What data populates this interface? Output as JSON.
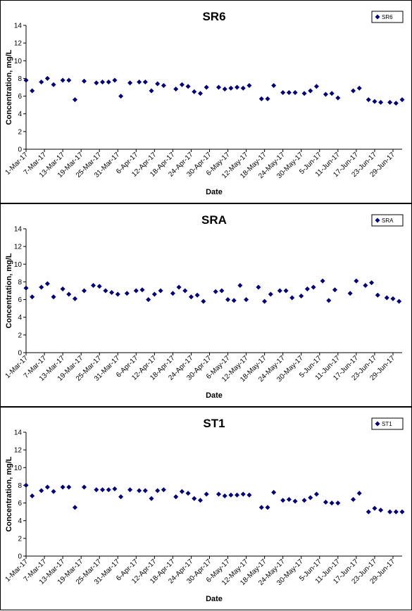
{
  "chart_data": [
    {
      "type": "scatter",
      "title": "SR6",
      "xlabel": "Date",
      "ylabel": "Concentration, mg/L",
      "ylim": [
        0,
        14
      ],
      "yticks": [
        "0",
        "2",
        "4",
        "6",
        "8",
        "10",
        "12",
        "14"
      ],
      "xlim": [
        "1-Mar-17",
        "2-Jul-17"
      ],
      "xtick_labels": [
        "1-Mar-17",
        "7-Mar-17",
        "13-Mar-17",
        "19-Mar-17",
        "25-Mar-17",
        "31-Mar-17",
        "6-Apr-17",
        "12-Apr-17",
        "18-Apr-17",
        "24-Apr-17",
        "30-Apr-17",
        "6-May-17",
        "12-May-17",
        "18-May-17",
        "24-May-17",
        "30-May-17",
        "5-Jun-17",
        "11-Jun-17",
        "17-Jun-17",
        "23-Jun-17",
        "29-Jun-17"
      ],
      "grid": false,
      "legend_position": "top-right",
      "marker": "diamond",
      "color": "#000080",
      "series": [
        {
          "name": "SR6",
          "points": [
            [
              "1-Mar-17",
              7.8
            ],
            [
              "3-Mar-17",
              6.6
            ],
            [
              "6-Mar-17",
              7.6
            ],
            [
              "8-Mar-17",
              8.0
            ],
            [
              "10-Mar-17",
              7.3
            ],
            [
              "13-Mar-17",
              7.8
            ],
            [
              "15-Mar-17",
              7.8
            ],
            [
              "17-Mar-17",
              5.6
            ],
            [
              "20-Mar-17",
              7.7
            ],
            [
              "24-Mar-17",
              7.5
            ],
            [
              "26-Mar-17",
              7.6
            ],
            [
              "28-Mar-17",
              7.6
            ],
            [
              "30-Mar-17",
              7.8
            ],
            [
              "1-Apr-17",
              6.0
            ],
            [
              "4-Apr-17",
              7.5
            ],
            [
              "7-Apr-17",
              7.6
            ],
            [
              "9-Apr-17",
              7.6
            ],
            [
              "11-Apr-17",
              6.6
            ],
            [
              "13-Apr-17",
              7.4
            ],
            [
              "15-Apr-17",
              7.2
            ],
            [
              "19-Apr-17",
              6.8
            ],
            [
              "21-Apr-17",
              7.3
            ],
            [
              "23-Apr-17",
              7.1
            ],
            [
              "25-Apr-17",
              6.5
            ],
            [
              "27-Apr-17",
              6.3
            ],
            [
              "29-Apr-17",
              7.0
            ],
            [
              "3-May-17",
              7.0
            ],
            [
              "5-May-17",
              6.8
            ],
            [
              "7-May-17",
              6.9
            ],
            [
              "9-May-17",
              7.0
            ],
            [
              "11-May-17",
              6.9
            ],
            [
              "13-May-17",
              7.2
            ],
            [
              "17-May-17",
              5.7
            ],
            [
              "19-May-17",
              5.7
            ],
            [
              "21-May-17",
              7.2
            ],
            [
              "24-May-17",
              6.4
            ],
            [
              "26-May-17",
              6.4
            ],
            [
              "28-May-17",
              6.4
            ],
            [
              "31-May-17",
              6.3
            ],
            [
              "2-Jun-17",
              6.6
            ],
            [
              "4-Jun-17",
              7.1
            ],
            [
              "7-Jun-17",
              6.2
            ],
            [
              "9-Jun-17",
              6.3
            ],
            [
              "11-Jun-17",
              5.8
            ],
            [
              "16-Jun-17",
              6.6
            ],
            [
              "18-Jun-17",
              6.9
            ],
            [
              "21-Jun-17",
              5.6
            ],
            [
              "23-Jun-17",
              5.4
            ],
            [
              "25-Jun-17",
              5.3
            ],
            [
              "28-Jun-17",
              5.3
            ],
            [
              "30-Jun-17",
              5.2
            ],
            [
              "2-Jul-17",
              5.6
            ]
          ]
        }
      ]
    },
    {
      "type": "scatter",
      "title": "SRA",
      "xlabel": "Date",
      "ylabel": "Concentration, mg/L",
      "ylim": [
        0,
        14
      ],
      "yticks": [
        "0",
        "2",
        "4",
        "6",
        "8",
        "10",
        "12",
        "14"
      ],
      "xlim": [
        "1-Mar-17",
        "2-Jul-17"
      ],
      "xtick_labels": [
        "1-Mar-17",
        "7-Mar-17",
        "13-Mar-17",
        "19-Mar-17",
        "25-Mar-17",
        "31-Mar-17",
        "6-Apr-17",
        "12-Apr-17",
        "18-Apr-17",
        "24-Apr-17",
        "30-Apr-17",
        "6-May-17",
        "12-May-17",
        "18-May-17",
        "24-May-17",
        "30-May-17",
        "5-Jun-17",
        "11-Jun-17",
        "17-Jun-17",
        "23-Jun-17",
        "29-Jun-17"
      ],
      "grid": false,
      "legend_position": "top-right",
      "marker": "diamond",
      "color": "#000080",
      "series": [
        {
          "name": "SRA",
          "points": [
            [
              "1-Mar-17",
              7.3
            ],
            [
              "3-Mar-17",
              6.3
            ],
            [
              "6-Mar-17",
              7.4
            ],
            [
              "8-Mar-17",
              7.8
            ],
            [
              "10-Mar-17",
              6.3
            ],
            [
              "13-Mar-17",
              7.2
            ],
            [
              "15-Mar-17",
              6.6
            ],
            [
              "17-Mar-17",
              6.1
            ],
            [
              "20-Mar-17",
              7.0
            ],
            [
              "23-Mar-17",
              7.6
            ],
            [
              "25-Mar-17",
              7.5
            ],
            [
              "27-Mar-17",
              7.0
            ],
            [
              "29-Mar-17",
              6.8
            ],
            [
              "31-Mar-17",
              6.6
            ],
            [
              "3-Apr-17",
              6.7
            ],
            [
              "6-Apr-17",
              7.0
            ],
            [
              "8-Apr-17",
              7.1
            ],
            [
              "10-Apr-17",
              6.0
            ],
            [
              "12-Apr-17",
              6.6
            ],
            [
              "14-Apr-17",
              7.0
            ],
            [
              "18-Apr-17",
              6.7
            ],
            [
              "20-Apr-17",
              7.4
            ],
            [
              "22-Apr-17",
              7.0
            ],
            [
              "24-Apr-17",
              6.3
            ],
            [
              "26-Apr-17",
              6.5
            ],
            [
              "28-Apr-17",
              5.8
            ],
            [
              "2-May-17",
              6.9
            ],
            [
              "4-May-17",
              7.0
            ],
            [
              "6-May-17",
              6.0
            ],
            [
              "8-May-17",
              5.9
            ],
            [
              "10-May-17",
              7.6
            ],
            [
              "12-May-17",
              6.0
            ],
            [
              "16-May-17",
              7.4
            ],
            [
              "18-May-17",
              5.8
            ],
            [
              "20-May-17",
              6.6
            ],
            [
              "23-May-17",
              7.0
            ],
            [
              "25-May-17",
              7.0
            ],
            [
              "27-May-17",
              6.2
            ],
            [
              "30-May-17",
              6.4
            ],
            [
              "1-Jun-17",
              7.2
            ],
            [
              "3-Jun-17",
              7.4
            ],
            [
              "6-Jun-17",
              8.1
            ],
            [
              "8-Jun-17",
              5.9
            ],
            [
              "10-Jun-17",
              7.1
            ],
            [
              "15-Jun-17",
              6.7
            ],
            [
              "17-Jun-17",
              8.1
            ],
            [
              "20-Jun-17",
              7.6
            ],
            [
              "22-Jun-17",
              7.9
            ],
            [
              "24-Jun-17",
              6.5
            ],
            [
              "27-Jun-17",
              6.2
            ],
            [
              "29-Jun-17",
              6.1
            ],
            [
              "1-Jul-17",
              5.8
            ]
          ]
        }
      ]
    },
    {
      "type": "scatter",
      "title": "ST1",
      "xlabel": "Date",
      "ylabel": "Concentration, mg/L",
      "ylim": [
        0,
        14
      ],
      "yticks": [
        "0",
        "2",
        "4",
        "6",
        "8",
        "10",
        "12",
        "14"
      ],
      "xlim": [
        "1-Mar-17",
        "2-Jul-17"
      ],
      "xtick_labels": [
        "1-Mar-17",
        "7-Mar-17",
        "13-Mar-17",
        "19-Mar-17",
        "25-Mar-17",
        "31-Mar-17",
        "6-Apr-17",
        "12-Apr-17",
        "18-Apr-17",
        "24-Apr-17",
        "30-Apr-17",
        "6-May-17",
        "12-May-17",
        "18-May-17",
        "24-May-17",
        "30-May-17",
        "5-Jun-17",
        "11-Jun-17",
        "17-Jun-17",
        "23-Jun-17",
        "29-Jun-17"
      ],
      "grid": false,
      "legend_position": "top-right",
      "marker": "diamond",
      "color": "#000080",
      "series": [
        {
          "name": "ST1",
          "points": [
            [
              "1-Mar-17",
              8.0
            ],
            [
              "3-Mar-17",
              6.8
            ],
            [
              "6-Mar-17",
              7.4
            ],
            [
              "8-Mar-17",
              7.8
            ],
            [
              "10-Mar-17",
              7.3
            ],
            [
              "13-Mar-17",
              7.8
            ],
            [
              "15-Mar-17",
              7.8
            ],
            [
              "17-Mar-17",
              5.5
            ],
            [
              "20-Mar-17",
              7.8
            ],
            [
              "24-Mar-17",
              7.5
            ],
            [
              "26-Mar-17",
              7.5
            ],
            [
              "28-Mar-17",
              7.5
            ],
            [
              "30-Mar-17",
              7.6
            ],
            [
              "1-Apr-17",
              6.7
            ],
            [
              "4-Apr-17",
              7.5
            ],
            [
              "7-Apr-17",
              7.4
            ],
            [
              "9-Apr-17",
              7.4
            ],
            [
              "11-Apr-17",
              6.5
            ],
            [
              "13-Apr-17",
              7.4
            ],
            [
              "15-Apr-17",
              7.5
            ],
            [
              "19-Apr-17",
              6.7
            ],
            [
              "21-Apr-17",
              7.3
            ],
            [
              "23-Apr-17",
              7.1
            ],
            [
              "25-Apr-17",
              6.5
            ],
            [
              "27-Apr-17",
              6.3
            ],
            [
              "29-Apr-17",
              7.0
            ],
            [
              "3-May-17",
              7.0
            ],
            [
              "5-May-17",
              6.8
            ],
            [
              "7-May-17",
              6.9
            ],
            [
              "9-May-17",
              6.9
            ],
            [
              "11-May-17",
              7.0
            ],
            [
              "13-May-17",
              6.9
            ],
            [
              "17-May-17",
              5.5
            ],
            [
              "19-May-17",
              5.5
            ],
            [
              "21-May-17",
              7.2
            ],
            [
              "24-May-17",
              6.3
            ],
            [
              "26-May-17",
              6.4
            ],
            [
              "28-May-17",
              6.2
            ],
            [
              "31-May-17",
              6.3
            ],
            [
              "2-Jun-17",
              6.6
            ],
            [
              "4-Jun-17",
              7.0
            ],
            [
              "7-Jun-17",
              6.1
            ],
            [
              "9-Jun-17",
              6.0
            ],
            [
              "11-Jun-17",
              6.0
            ],
            [
              "16-Jun-17",
              6.4
            ],
            [
              "18-Jun-17",
              7.1
            ],
            [
              "21-Jun-17",
              5.0
            ],
            [
              "23-Jun-17",
              5.4
            ],
            [
              "25-Jun-17",
              5.2
            ],
            [
              "28-Jun-17",
              5.0
            ],
            [
              "30-Jun-17",
              5.0
            ],
            [
              "2-Jul-17",
              5.0
            ]
          ]
        }
      ]
    }
  ]
}
